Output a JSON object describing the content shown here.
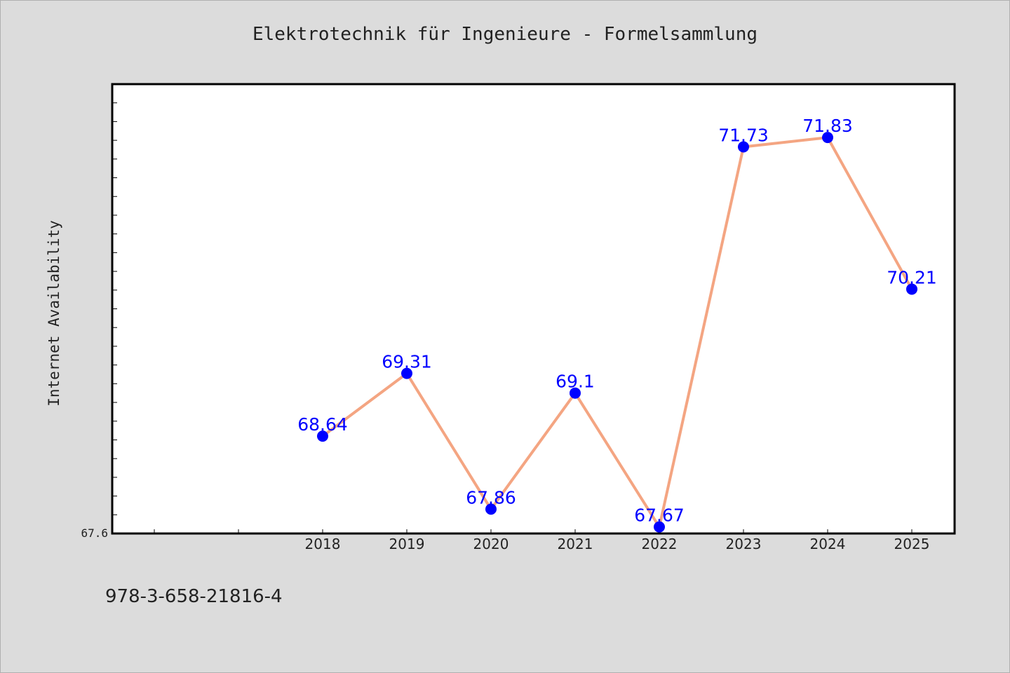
{
  "title": "Elektrotechnik für Ingenieure - Formelsammlung",
  "footer_text": "978-3-658-21816-4",
  "colors": {
    "background": "#dcdcdc",
    "plot_background": "#ffffff",
    "line": "#f4a582",
    "marker": "#0000ff",
    "label": "#0000ff"
  },
  "chart_data": {
    "type": "line",
    "title": "Elektrotechnik für Ingenieure - Formelsammlung",
    "xlabel": "",
    "ylabel": "Internet Availability",
    "categories": [
      "2018",
      "2019",
      "2020",
      "2021",
      "2022",
      "2023",
      "2024",
      "2025"
    ],
    "series": [
      {
        "values": [
          68.64,
          69.31,
          67.86,
          69.1,
          67.67,
          71.73,
          71.83,
          70.21
        ],
        "labels": [
          "68.64",
          "69.31",
          "67.86",
          "69.1",
          "67.67",
          "71.73",
          "71.83",
          "70.21"
        ]
      }
    ],
    "ylim": [
      67.6,
      72.4
    ],
    "ytick_labels": [
      "67.6"
    ],
    "grid": false,
    "legend": "none"
  }
}
